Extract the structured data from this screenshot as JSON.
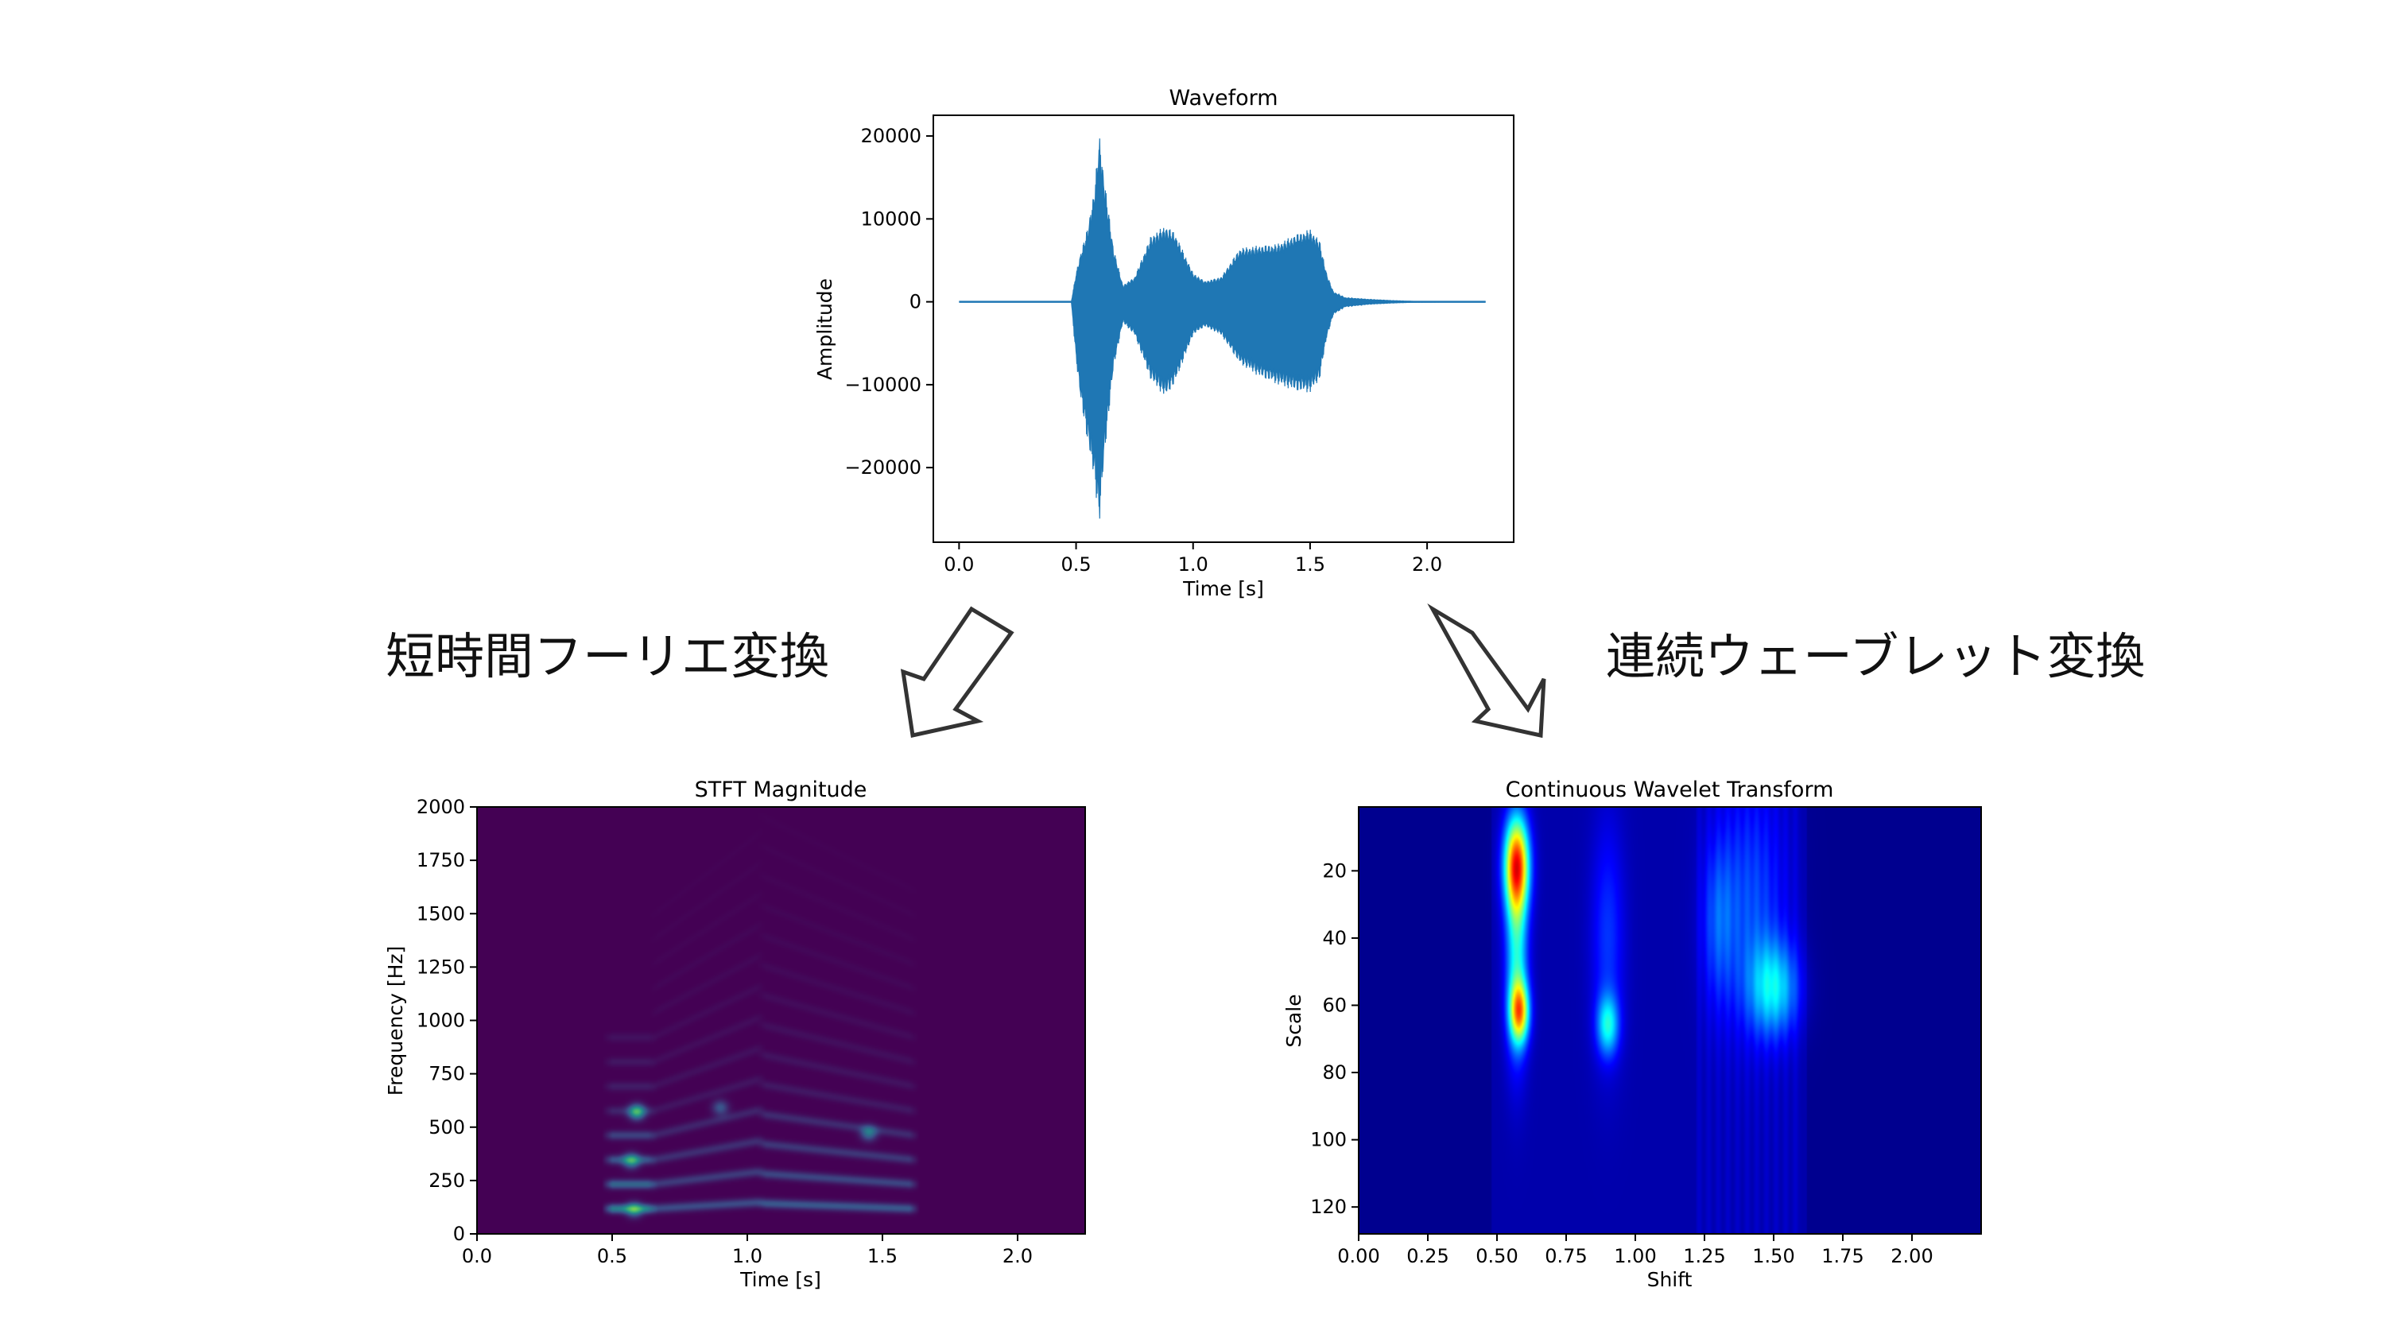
{
  "labels": {
    "stft_caption": "短時間フーリエ変換",
    "cwt_caption": "連続ウェーブレット変換"
  },
  "colors": {
    "waveform": "#1f77b4",
    "arrow_stroke": "#333333",
    "viridis_low": "#440154",
    "jet_low": "#00008f"
  },
  "chart_data": [
    {
      "id": "waveform",
      "type": "line",
      "title": "Waveform",
      "xlabel": "Time [s]",
      "ylabel": "Amplitude",
      "xlim": [
        -0.11,
        2.37
      ],
      "ylim": [
        -29000,
        22500
      ],
      "xticks": [
        0.0,
        0.5,
        1.0,
        1.5,
        2.0
      ],
      "xtick_labels": [
        "0.0",
        "0.5",
        "1.0",
        "1.5",
        "2.0"
      ],
      "yticks": [
        20000,
        10000,
        0,
        -10000,
        -20000
      ],
      "ytick_labels": [
        "20000",
        "10000",
        "0",
        "−10000",
        "−20000"
      ],
      "duration": 2.25,
      "envelope": {
        "t": [
          0.0,
          0.48,
          0.5,
          0.52,
          0.55,
          0.58,
          0.6,
          0.62,
          0.66,
          0.7,
          0.75,
          0.82,
          0.88,
          0.92,
          0.96,
          1.0,
          1.05,
          1.12,
          1.2,
          1.28,
          1.36,
          1.44,
          1.5,
          1.54,
          1.57,
          1.6,
          1.65,
          1.75,
          1.85,
          1.95,
          2.25
        ],
        "upper": [
          0,
          0,
          3500,
          6000,
          9000,
          14000,
          20300,
          15000,
          6500,
          2000,
          3000,
          8000,
          9200,
          8500,
          6000,
          3500,
          2500,
          3000,
          6500,
          6800,
          7000,
          8200,
          8800,
          7500,
          3500,
          1200,
          500,
          300,
          150,
          50,
          0
        ],
        "lower": [
          0,
          0,
          -7000,
          -12000,
          -17000,
          -22000,
          -27000,
          -19000,
          -8000,
          -2500,
          -4000,
          -9500,
          -11500,
          -10000,
          -7000,
          -4000,
          -3000,
          -4000,
          -7500,
          -9000,
          -10000,
          -10800,
          -11000,
          -9500,
          -4500,
          -1500,
          -600,
          -300,
          -150,
          -50,
          0
        ]
      }
    },
    {
      "id": "stft",
      "type": "heatmap",
      "title": "STFT Magnitude",
      "xlabel": "Time [s]",
      "ylabel": "Frequency [Hz]",
      "xlim": [
        0.0,
        2.25
      ],
      "ylim": [
        0,
        2000
      ],
      "xticks": [
        0.0,
        0.5,
        1.0,
        1.5,
        2.0
      ],
      "xtick_labels": [
        "0.0",
        "0.5",
        "1.0",
        "1.5",
        "2.0"
      ],
      "yticks": [
        0,
        250,
        500,
        750,
        1000,
        1250,
        1500,
        1750,
        2000
      ],
      "ytick_labels": [
        "0",
        "250",
        "500",
        "750",
        "1000",
        "1250",
        "1500",
        "1750",
        "2000"
      ],
      "colormap": "viridis",
      "segments": [
        {
          "t0": 0.48,
          "t1": 0.65,
          "f0_start": 115,
          "f0_end": 115,
          "harmonics": 8,
          "gain": 1.0
        },
        {
          "t0": 0.65,
          "t1": 1.05,
          "f0_start": 115,
          "f0_end": 145,
          "harmonics": 13,
          "gain": 0.55
        },
        {
          "t0": 1.05,
          "t1": 1.62,
          "f0_start": 140,
          "f0_end": 115,
          "harmonics": 14,
          "gain": 0.65
        }
      ],
      "hotspots": [
        {
          "t": 0.59,
          "f": 570,
          "v": 1.0
        },
        {
          "t": 0.57,
          "f": 340,
          "v": 0.75
        },
        {
          "t": 0.58,
          "f": 110,
          "v": 0.65
        },
        {
          "t": 1.45,
          "f": 470,
          "v": 0.6
        },
        {
          "t": 0.9,
          "f": 590,
          "v": 0.45
        }
      ]
    },
    {
      "id": "cwt",
      "type": "heatmap",
      "title": "Continuous Wavelet Transform",
      "xlabel": "Shift",
      "ylabel": "Scale",
      "xlim": [
        0.0,
        2.25
      ],
      "ylim": [
        128,
        1
      ],
      "xticks": [
        0.0,
        0.25,
        0.5,
        0.75,
        1.0,
        1.25,
        1.5,
        1.75,
        2.0
      ],
      "xtick_labels": [
        "0.00",
        "0.25",
        "0.50",
        "0.75",
        "1.00",
        "1.25",
        "1.50",
        "1.75",
        "2.00"
      ],
      "yticks": [
        20,
        40,
        60,
        80,
        100,
        120
      ],
      "ytick_labels": [
        "20",
        "40",
        "60",
        "80",
        "100",
        "120"
      ],
      "colormap": "jet",
      "blobs": [
        {
          "t": 0.57,
          "s": 18,
          "wt": 0.045,
          "ws": 14,
          "v": 0.72
        },
        {
          "t": 0.58,
          "s": 62,
          "wt": 0.035,
          "ws": 9,
          "v": 0.55
        },
        {
          "t": 0.57,
          "s": 45,
          "wt": 0.04,
          "ws": 30,
          "v": 0.35
        },
        {
          "t": 0.9,
          "s": 66,
          "wt": 0.04,
          "ws": 9,
          "v": 0.3
        },
        {
          "t": 0.9,
          "s": 40,
          "wt": 0.06,
          "ws": 35,
          "v": 0.14
        },
        {
          "t": 1.3,
          "s": 35,
          "wt": 0.06,
          "ws": 25,
          "v": 0.13
        },
        {
          "t": 1.5,
          "s": 55,
          "wt": 0.09,
          "ws": 14,
          "v": 0.28
        },
        {
          "t": 1.42,
          "s": 30,
          "wt": 0.12,
          "ws": 35,
          "v": 0.14
        }
      ]
    }
  ]
}
